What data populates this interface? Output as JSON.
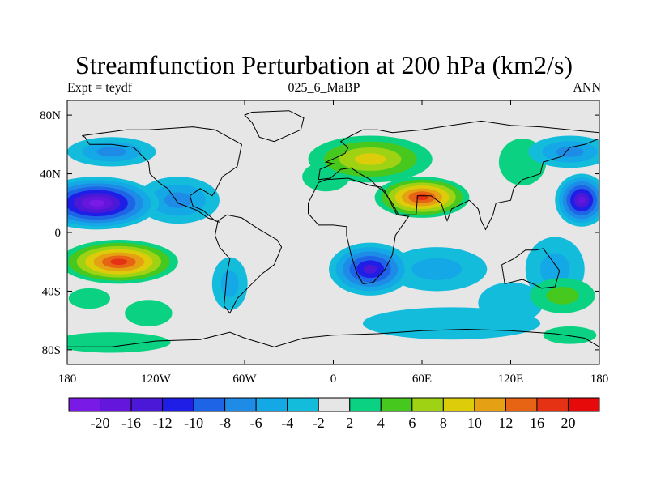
{
  "title": "Streamfunction Perturbation at 200 hPa (km2/s)",
  "subtitle_left": "Expt = teydf",
  "subtitle_center": "025_6_MaBP",
  "subtitle_right": "ANN",
  "colors": {
    "background_fill": "#e6e6e6",
    "land_outline": "#000000"
  },
  "chart_data": {
    "type": "heatmap",
    "title": "Streamfunction Perturbation at 200 hPa (km2/s)",
    "xlim": [
      -180,
      180
    ],
    "ylim": [
      -90,
      90
    ],
    "x_ticks": [
      {
        "value": -180,
        "label": "180"
      },
      {
        "value": -120,
        "label": "120W"
      },
      {
        "value": -60,
        "label": "60W"
      },
      {
        "value": 0,
        "label": "0"
      },
      {
        "value": 60,
        "label": "60E"
      },
      {
        "value": 120,
        "label": "120E"
      },
      {
        "value": 180,
        "label": "180"
      }
    ],
    "y_ticks": [
      {
        "value": 80,
        "label": "80N"
      },
      {
        "value": 40,
        "label": "40N"
      },
      {
        "value": 0,
        "label": "0"
      },
      {
        "value": -40,
        "label": "40S"
      },
      {
        "value": -80,
        "label": "80S"
      }
    ],
    "colorbar": {
      "levels": [
        -20,
        -16,
        -12,
        -10,
        -8,
        -6,
        -4,
        -2,
        2,
        4,
        6,
        8,
        10,
        12,
        16,
        20
      ],
      "labels": [
        "-20",
        "-16",
        "-12",
        "-10",
        "-8",
        "-6",
        "-4",
        "-2",
        "2",
        "4",
        "6",
        "8",
        "10",
        "12",
        "16",
        "20"
      ],
      "colors": [
        "#7a1ae6",
        "#6416dc",
        "#4a18d6",
        "#1e1ee6",
        "#1e64e6",
        "#1e8ce6",
        "#14a8e6",
        "#14bcdc",
        "#e6e6e6",
        "#0ad282",
        "#46c81e",
        "#a0d214",
        "#dccc0a",
        "#e6a014",
        "#e66414",
        "#e63214",
        "#e60a0a"
      ]
    },
    "centers": [
      {
        "lon": -160,
        "lat": 20,
        "value": -22,
        "rx": 42,
        "ry": 18
      },
      {
        "lon": -105,
        "lat": 22,
        "value": -8,
        "rx": 28,
        "ry": 16
      },
      {
        "lon": -150,
        "lat": 55,
        "value": -7,
        "rx": 30,
        "ry": 10
      },
      {
        "lon": -145,
        "lat": -20,
        "value": 16,
        "rx": 40,
        "ry": 15
      },
      {
        "lon": -150,
        "lat": -75,
        "value": 3,
        "rx": 40,
        "ry": 7
      },
      {
        "lon": -165,
        "lat": -45,
        "value": 3,
        "rx": 14,
        "ry": 7
      },
      {
        "lon": -125,
        "lat": -55,
        "value": 3,
        "rx": 16,
        "ry": 9
      },
      {
        "lon": -70,
        "lat": -35,
        "value": -5,
        "rx": 12,
        "ry": 18
      },
      {
        "lon": 60,
        "lat": 24,
        "value": 16,
        "rx": 32,
        "ry": 14
      },
      {
        "lon": 25,
        "lat": 50,
        "value": 8,
        "rx": 42,
        "ry": 16
      },
      {
        "lon": -5,
        "lat": 38,
        "value": 3,
        "rx": 16,
        "ry": 10
      },
      {
        "lon": 25,
        "lat": -25,
        "value": -14,
        "rx": 28,
        "ry": 18
      },
      {
        "lon": 70,
        "lat": -25,
        "value": -6,
        "rx": 34,
        "ry": 15
      },
      {
        "lon": 80,
        "lat": -62,
        "value": -4,
        "rx": 60,
        "ry": 11
      },
      {
        "lon": 120,
        "lat": -48,
        "value": -4,
        "rx": 22,
        "ry": 14
      },
      {
        "lon": 150,
        "lat": -25,
        "value": -5,
        "rx": 20,
        "ry": 22
      },
      {
        "lon": 168,
        "lat": 22,
        "value": -18,
        "rx": 18,
        "ry": 18
      },
      {
        "lon": 160,
        "lat": 55,
        "value": -7,
        "rx": 28,
        "ry": 11
      },
      {
        "lon": 155,
        "lat": -43,
        "value": 5,
        "rx": 22,
        "ry": 12
      },
      {
        "lon": 128,
        "lat": 48,
        "value": 3,
        "rx": 16,
        "ry": 16
      },
      {
        "lon": 160,
        "lat": -70,
        "value": 3,
        "rx": 18,
        "ry": 6
      }
    ],
    "land_outlines": [
      [
        [
          -170,
          66
        ],
        [
          -140,
          70
        ],
        [
          -125,
          70
        ],
        [
          -95,
          72
        ],
        [
          -80,
          70
        ],
        [
          -62,
          60
        ],
        [
          -65,
          45
        ],
        [
          -75,
          38
        ],
        [
          -80,
          28
        ],
        [
          -82,
          25
        ],
        [
          -90,
          30
        ],
        [
          -97,
          25
        ],
        [
          -95,
          18
        ],
        [
          -88,
          15
        ],
        [
          -80,
          8
        ],
        [
          -77,
          7
        ],
        [
          -85,
          10
        ],
        [
          -92,
          15
        ],
        [
          -105,
          20
        ],
        [
          -112,
          30
        ],
        [
          -118,
          34
        ],
        [
          -124,
          40
        ],
        [
          -125,
          48
        ],
        [
          -135,
          58
        ],
        [
          -150,
          60
        ],
        [
          -165,
          60
        ],
        [
          -168,
          65
        ],
        [
          -170,
          66
        ]
      ],
      [
        [
          -55,
          82
        ],
        [
          -30,
          83
        ],
        [
          -20,
          78
        ],
        [
          -22,
          70
        ],
        [
          -40,
          62
        ],
        [
          -50,
          65
        ],
        [
          -55,
          75
        ],
        [
          -60,
          80
        ],
        [
          -55,
          82
        ]
      ],
      [
        [
          -78,
          8
        ],
        [
          -72,
          12
        ],
        [
          -62,
          10
        ],
        [
          -50,
          2
        ],
        [
          -38,
          -5
        ],
        [
          -35,
          -10
        ],
        [
          -40,
          -22
        ],
        [
          -48,
          -28
        ],
        [
          -58,
          -38
        ],
        [
          -65,
          -45
        ],
        [
          -70,
          -55
        ],
        [
          -74,
          -50
        ],
        [
          -73,
          -40
        ],
        [
          -72,
          -28
        ],
        [
          -70,
          -18
        ],
        [
          -77,
          -10
        ],
        [
          -80,
          -2
        ],
        [
          -78,
          8
        ]
      ],
      [
        [
          -17,
          20
        ],
        [
          -10,
          34
        ],
        [
          -5,
          36
        ],
        [
          10,
          37
        ],
        [
          25,
          32
        ],
        [
          32,
          31
        ],
        [
          35,
          28
        ],
        [
          43,
          12
        ],
        [
          51,
          11
        ],
        [
          42,
          -2
        ],
        [
          40,
          -15
        ],
        [
          35,
          -25
        ],
        [
          27,
          -34
        ],
        [
          20,
          -35
        ],
        [
          16,
          -28
        ],
        [
          12,
          -15
        ],
        [
          9,
          -2
        ],
        [
          9,
          4
        ],
        [
          0,
          5
        ],
        [
          -10,
          5
        ],
        [
          -17,
          13
        ],
        [
          -17,
          20
        ]
      ],
      [
        [
          -10,
          36
        ],
        [
          -9,
          43
        ],
        [
          0,
          47
        ],
        [
          -5,
          48
        ],
        [
          2,
          51
        ],
        [
          8,
          54
        ],
        [
          10,
          58
        ],
        [
          5,
          62
        ],
        [
          12,
          66
        ],
        [
          20,
          70
        ],
        [
          30,
          70
        ],
        [
          40,
          68
        ],
        [
          60,
          70
        ],
        [
          80,
          73
        ],
        [
          100,
          76
        ],
        [
          120,
          73
        ],
        [
          140,
          72
        ],
        [
          160,
          70
        ],
        [
          180,
          68
        ],
        [
          180,
          64
        ],
        [
          170,
          60
        ],
        [
          160,
          58
        ],
        [
          155,
          52
        ],
        [
          142,
          48
        ],
        [
          140,
          40
        ],
        [
          128,
          36
        ],
        [
          122,
          30
        ],
        [
          120,
          22
        ],
        [
          110,
          20
        ],
        [
          108,
          12
        ],
        [
          103,
          2
        ],
        [
          100,
          8
        ],
        [
          98,
          16
        ],
        [
          92,
          22
        ],
        [
          80,
          16
        ],
        [
          77,
          8
        ],
        [
          73,
          20
        ],
        [
          66,
          25
        ],
        [
          57,
          25
        ],
        [
          56,
          12
        ],
        [
          44,
          12
        ],
        [
          40,
          20
        ],
        [
          34,
          28
        ],
        [
          30,
          31
        ],
        [
          25,
          36
        ],
        [
          18,
          40
        ],
        [
          12,
          44
        ],
        [
          5,
          43
        ],
        [
          -2,
          37
        ],
        [
          -10,
          36
        ]
      ],
      [
        [
          114,
          -22
        ],
        [
          122,
          -18
        ],
        [
          130,
          -12
        ],
        [
          137,
          -12
        ],
        [
          142,
          -11
        ],
        [
          145,
          -15
        ],
        [
          153,
          -26
        ],
        [
          150,
          -37
        ],
        [
          141,
          -38
        ],
        [
          135,
          -35
        ],
        [
          128,
          -32
        ],
        [
          116,
          -35
        ],
        [
          114,
          -22
        ]
      ],
      [
        [
          -180,
          -78
        ],
        [
          -150,
          -78
        ],
        [
          -120,
          -74
        ],
        [
          -90,
          -73
        ],
        [
          -70,
          -68
        ],
        [
          -60,
          -72
        ],
        [
          -40,
          -78
        ],
        [
          -20,
          -72
        ],
        [
          0,
          -70
        ],
        [
          30,
          -69
        ],
        [
          60,
          -67
        ],
        [
          90,
          -66
        ],
        [
          120,
          -67
        ],
        [
          150,
          -69
        ],
        [
          170,
          -72
        ],
        [
          180,
          -78
        ]
      ]
    ]
  }
}
